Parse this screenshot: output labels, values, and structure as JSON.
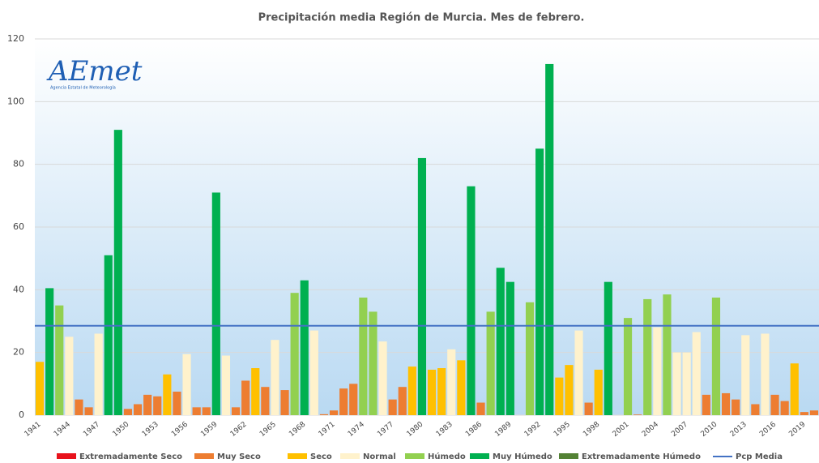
{
  "chart_data": {
    "type": "bar",
    "title": "Precipitación media Región de Murcia. Mes de febrero.",
    "logo": {
      "name": "AEmet",
      "subtitle": "Agencia Estatal de Meteorología"
    },
    "categories": [
      "1941",
      null,
      null,
      "1944",
      null,
      null,
      "1947",
      null,
      null,
      "1950",
      null,
      null,
      "1953",
      null,
      null,
      "1956",
      null,
      null,
      "1959",
      null,
      null,
      "1962",
      null,
      null,
      "1965",
      null,
      null,
      "1968",
      null,
      null,
      "1971",
      null,
      null,
      "1974",
      null,
      null,
      "1977",
      null,
      null,
      "1980",
      null,
      null,
      "1983",
      null,
      null,
      "1986",
      null,
      null,
      "1989",
      null,
      null,
      "1992",
      null,
      null,
      "1995",
      null,
      null,
      "1998",
      null,
      null,
      "2001",
      null,
      null,
      "2004",
      null,
      null,
      "2007",
      null,
      null,
      "2010",
      null,
      null,
      "2013",
      null,
      null,
      "2016",
      null,
      null,
      "2019",
      null
    ],
    "series": [
      {
        "name": "Extremadamente Seco",
        "color": "#e8121c",
        "values": [
          null,
          null,
          null,
          null,
          null,
          null,
          null,
          null,
          null,
          null,
          null,
          null,
          null,
          null,
          null,
          null,
          null,
          null,
          null,
          null,
          null,
          null,
          null,
          null,
          null,
          null,
          null,
          null,
          null,
          null,
          null,
          null,
          null,
          null,
          null,
          null,
          null,
          null,
          null,
          null,
          null,
          null,
          null,
          null,
          null,
          null,
          null,
          null,
          null,
          null,
          null,
          null,
          null,
          null,
          null,
          null,
          null,
          null,
          null,
          null,
          null,
          null,
          null,
          null,
          null,
          null,
          null,
          null,
          null,
          null,
          null,
          null,
          null,
          null,
          null,
          null,
          null,
          null,
          null,
          null
        ]
      },
      {
        "name": "Muy Seco",
        "color": "#ed7d31",
        "values": [
          null,
          null,
          null,
          null,
          5,
          2.5,
          null,
          null,
          null,
          2,
          3.5,
          6.5,
          6,
          null,
          7.5,
          null,
          2.5,
          2.5,
          null,
          null,
          2.5,
          11,
          null,
          9,
          null,
          8,
          null,
          null,
          null,
          0.3,
          1.5,
          8.5,
          10,
          null,
          null,
          null,
          5,
          9,
          null,
          null,
          null,
          null,
          null,
          null,
          null,
          4,
          null,
          null,
          null,
          null,
          null,
          null,
          null,
          null,
          null,
          null,
          4,
          null,
          null,
          null,
          null,
          0.2,
          null,
          null,
          null,
          null,
          null,
          null,
          6.5,
          null,
          7,
          5,
          null,
          3.5,
          null,
          6.5,
          4.5,
          null,
          1,
          1.5
        ]
      },
      {
        "name": "Seco",
        "color": "#ffc000",
        "values": [
          17,
          null,
          null,
          null,
          null,
          null,
          null,
          null,
          null,
          null,
          null,
          null,
          null,
          13,
          null,
          null,
          null,
          null,
          null,
          null,
          null,
          null,
          15,
          null,
          null,
          null,
          null,
          null,
          null,
          null,
          null,
          null,
          null,
          null,
          null,
          null,
          null,
          null,
          15.5,
          null,
          14.5,
          15,
          null,
          17.5,
          null,
          null,
          null,
          null,
          null,
          null,
          null,
          null,
          null,
          12,
          16,
          null,
          null,
          14.5,
          null,
          null,
          null,
          null,
          null,
          null,
          null,
          null,
          null,
          null,
          null,
          null,
          null,
          null,
          null,
          null,
          null,
          null,
          null,
          16.5,
          null,
          null
        ]
      },
      {
        "name": "Normal",
        "color": "#fff2cc",
        "values": [
          null,
          null,
          null,
          25,
          null,
          null,
          26,
          null,
          null,
          null,
          null,
          null,
          null,
          null,
          null,
          19.5,
          null,
          null,
          null,
          19,
          null,
          null,
          null,
          null,
          24,
          null,
          null,
          null,
          27,
          null,
          null,
          null,
          null,
          null,
          null,
          23.5,
          null,
          null,
          null,
          null,
          null,
          null,
          21,
          null,
          null,
          null,
          null,
          null,
          null,
          null,
          null,
          null,
          null,
          null,
          null,
          27,
          null,
          null,
          null,
          null,
          null,
          null,
          null,
          28,
          null,
          20,
          20,
          26.5,
          null,
          null,
          null,
          null,
          25.5,
          null,
          26,
          null,
          null,
          null,
          null,
          null
        ]
      },
      {
        "name": "Húmedo",
        "color": "#92d050",
        "values": [
          null,
          null,
          35,
          null,
          null,
          null,
          null,
          null,
          null,
          null,
          null,
          null,
          null,
          null,
          null,
          null,
          null,
          null,
          null,
          null,
          null,
          null,
          null,
          null,
          null,
          null,
          39,
          null,
          null,
          null,
          null,
          null,
          null,
          37.5,
          33,
          null,
          null,
          null,
          null,
          null,
          null,
          null,
          null,
          null,
          null,
          null,
          33,
          null,
          null,
          null,
          36,
          null,
          null,
          null,
          null,
          null,
          null,
          null,
          null,
          null,
          31,
          null,
          37,
          null,
          38.5,
          null,
          null,
          null,
          null,
          37.5,
          null,
          null,
          null,
          null,
          null,
          null,
          null,
          null,
          null,
          null
        ]
      },
      {
        "name": "Muy Húmedo",
        "color": "#00b050",
        "values": [
          null,
          40.5,
          null,
          null,
          null,
          null,
          null,
          51,
          91,
          null,
          null,
          null,
          null,
          null,
          null,
          null,
          null,
          null,
          71,
          null,
          null,
          null,
          null,
          null,
          null,
          null,
          null,
          43,
          null,
          null,
          null,
          null,
          null,
          null,
          null,
          null,
          null,
          null,
          null,
          82,
          null,
          null,
          null,
          null,
          73,
          null,
          null,
          47,
          42.5,
          null,
          null,
          85,
          112,
          null,
          null,
          null,
          null,
          null,
          42.5,
          null,
          null,
          null,
          null,
          null,
          null,
          null,
          null,
          null,
          null,
          null,
          null,
          null,
          null,
          null,
          null,
          null,
          null,
          null,
          null,
          null
        ]
      },
      {
        "name": "Extremadamente Húmedo",
        "color": "#548235",
        "values": [
          null,
          null,
          null,
          null,
          null,
          null,
          null,
          null,
          null,
          null,
          null,
          null,
          null,
          null,
          null,
          null,
          null,
          null,
          null,
          null,
          null,
          null,
          null,
          null,
          null,
          null,
          null,
          null,
          null,
          null,
          null,
          null,
          null,
          null,
          null,
          null,
          null,
          null,
          null,
          null,
          null,
          null,
          null,
          null,
          null,
          null,
          null,
          null,
          null,
          null,
          null,
          null,
          null,
          null,
          null,
          null,
          null,
          null,
          null,
          null,
          null,
          null,
          null,
          null,
          null,
          null,
          null,
          null,
          null,
          null,
          null,
          null,
          null,
          null,
          null,
          null,
          null,
          null,
          null,
          null
        ]
      }
    ],
    "mean": {
      "name": "Pcp Media",
      "color": "#4472c4",
      "value": 28.5
    },
    "ylim": [
      0,
      120
    ],
    "yticks": [
      0,
      20,
      40,
      60,
      80,
      100,
      120
    ],
    "grid": true
  }
}
